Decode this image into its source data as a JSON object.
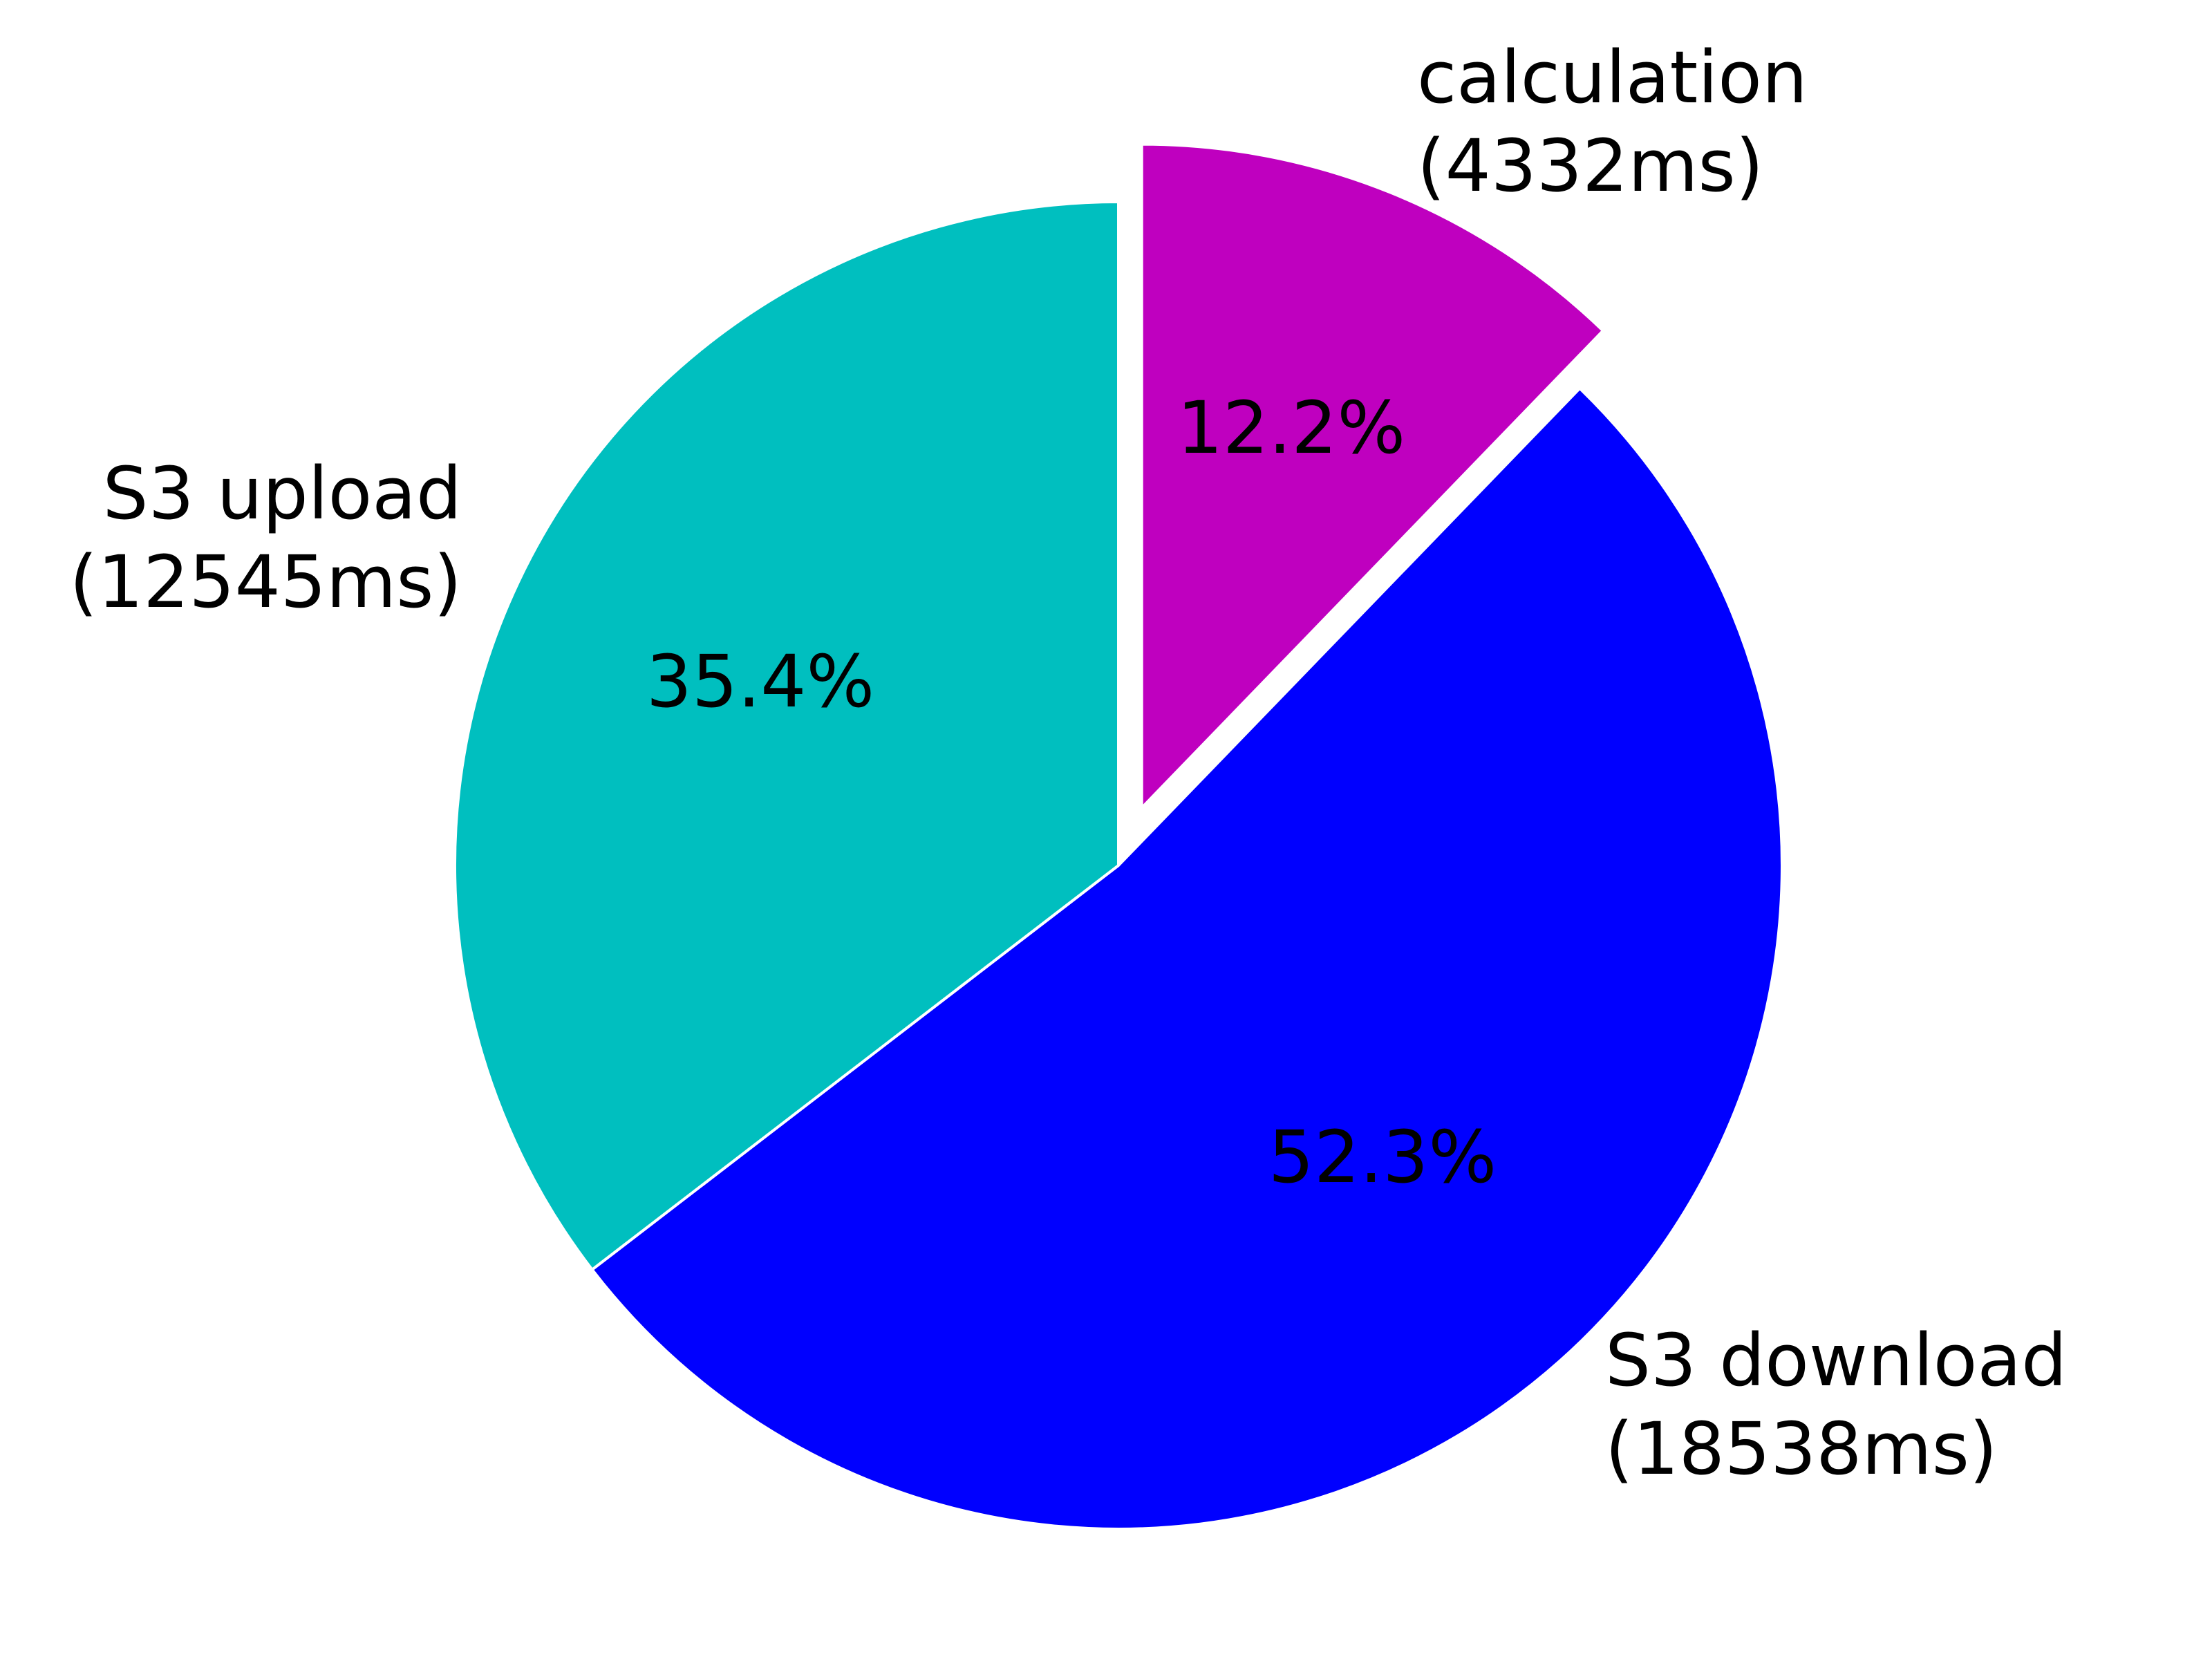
{
  "chart_data": {
    "type": "pie",
    "title": "",
    "slices": [
      {
        "label": "calculation",
        "detail": "(4332ms)",
        "value": 4332,
        "percent_label": "12.2%",
        "color": "#bf00bf",
        "exploded": true
      },
      {
        "label": "S3 download",
        "detail": "(18538ms)",
        "value": 18538,
        "percent_label": "52.3%",
        "color": "#0000ff",
        "exploded": false
      },
      {
        "label": "S3 upload",
        "detail": "(12545ms)",
        "value": 12545,
        "percent_label": "35.4%",
        "color": "#00bfbf",
        "exploded": false
      }
    ],
    "start_angle": "top",
    "direction": "clockwise",
    "slice_edge_color": "#ffffff"
  }
}
